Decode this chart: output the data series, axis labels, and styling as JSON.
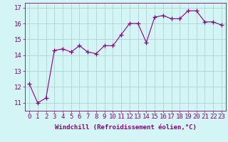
{
  "x": [
    0,
    1,
    2,
    3,
    4,
    5,
    6,
    7,
    8,
    9,
    10,
    11,
    12,
    13,
    14,
    15,
    16,
    17,
    18,
    19,
    20,
    21,
    22,
    23
  ],
  "y": [
    12.2,
    11.0,
    11.3,
    14.3,
    14.4,
    14.2,
    14.6,
    14.2,
    14.1,
    14.6,
    14.6,
    15.3,
    16.0,
    16.0,
    14.8,
    16.4,
    16.5,
    16.3,
    16.3,
    16.8,
    16.8,
    16.1,
    16.1,
    15.9
  ],
  "line_color": "#880088",
  "marker": "+",
  "marker_size": 4,
  "bg_color": "#d4f5f5",
  "grid_color": "#aacccc",
  "xlabel": "Windchill (Refroidissement éolien,°C)",
  "ylabel_ticks": [
    11,
    12,
    13,
    14,
    15,
    16,
    17
  ],
  "xticks": [
    0,
    1,
    2,
    3,
    4,
    5,
    6,
    7,
    8,
    9,
    10,
    11,
    12,
    13,
    14,
    15,
    16,
    17,
    18,
    19,
    20,
    21,
    22,
    23
  ],
  "ylim": [
    10.5,
    17.3
  ],
  "xlim": [
    -0.5,
    23.5
  ],
  "tick_color": "#880088",
  "label_fontsize": 6.5,
  "tick_fontsize": 6.5
}
